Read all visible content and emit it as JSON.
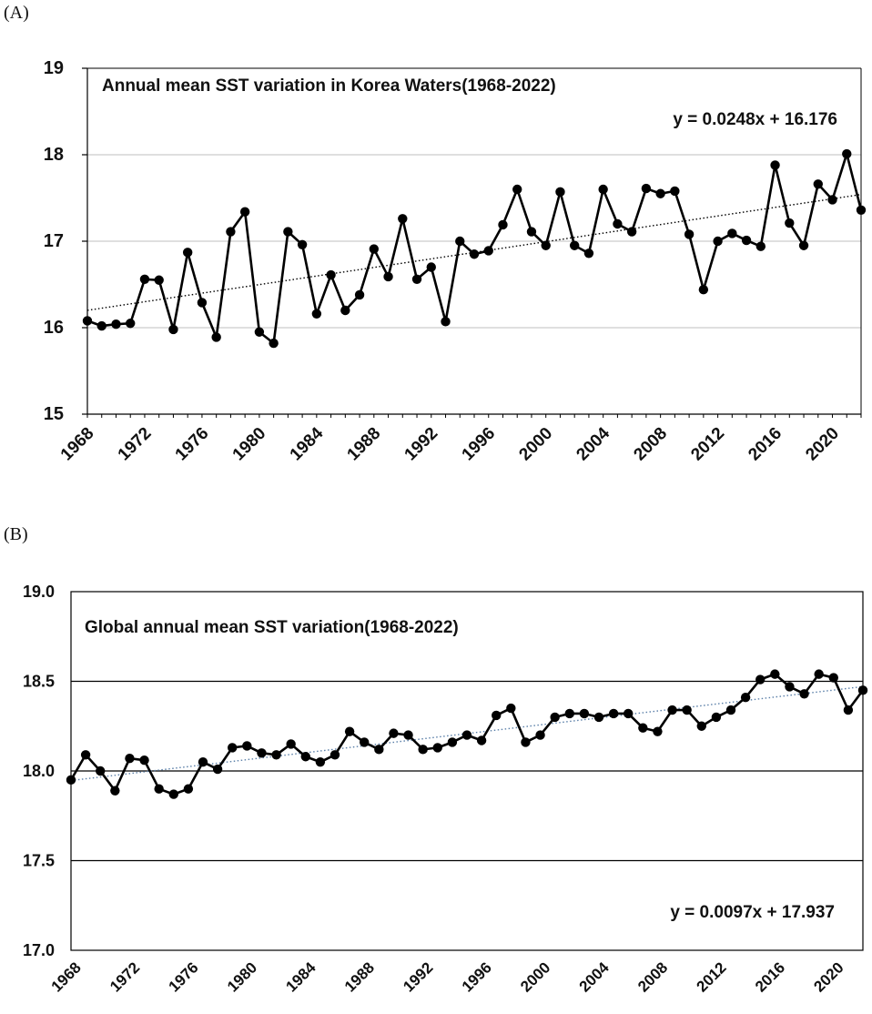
{
  "chart_data": [
    {
      "panel_label": "(A)",
      "type": "line",
      "title": "Annual mean SST variation in Korea Waters(1968-2022)",
      "equation": "y = 0.0248x + 16.176",
      "xlabel": "",
      "ylabel": "",
      "ylim": [
        15,
        19
      ],
      "yticks": [
        15,
        16,
        17,
        18,
        19
      ],
      "ytick_labels": [
        "15",
        "16",
        "17",
        "18",
        "19"
      ],
      "xtick_labels": [
        "1968",
        "1972",
        "1976",
        "1980",
        "1984",
        "1988",
        "1992",
        "1996",
        "2000",
        "2004",
        "2008",
        "2012",
        "2016",
        "2020"
      ],
      "grid": true,
      "trend": {
        "slope": 0.0248,
        "intercept": 16.176,
        "style": "dotted"
      },
      "series": [
        {
          "name": "Annual mean SST",
          "x": [
            1968,
            1969,
            1970,
            1971,
            1972,
            1973,
            1974,
            1975,
            1976,
            1977,
            1978,
            1979,
            1980,
            1981,
            1982,
            1983,
            1984,
            1985,
            1986,
            1987,
            1988,
            1989,
            1990,
            1991,
            1992,
            1993,
            1994,
            1995,
            1996,
            1997,
            1998,
            1999,
            2000,
            2001,
            2002,
            2003,
            2004,
            2005,
            2006,
            2007,
            2008,
            2009,
            2010,
            2011,
            2012,
            2013,
            2014,
            2015,
            2016,
            2017,
            2018,
            2019,
            2020,
            2021,
            2022
          ],
          "values": [
            16.08,
            16.02,
            16.04,
            16.05,
            16.56,
            16.55,
            15.98,
            16.87,
            16.29,
            15.89,
            17.11,
            17.34,
            15.95,
            15.82,
            17.11,
            16.96,
            16.16,
            16.61,
            16.2,
            16.38,
            16.91,
            16.59,
            17.26,
            16.56,
            16.7,
            16.07,
            17.0,
            16.85,
            16.89,
            17.19,
            17.6,
            17.11,
            16.95,
            17.57,
            16.95,
            16.86,
            17.6,
            17.2,
            17.11,
            17.61,
            17.55,
            17.58,
            17.08,
            16.44,
            17.0,
            17.09,
            17.01,
            16.94,
            17.88,
            17.21,
            16.95,
            17.66,
            17.48,
            18.01,
            17.36
          ]
        }
      ]
    },
    {
      "panel_label": "(B)",
      "type": "line",
      "title": "Global annual mean SST variation(1968-2022)",
      "equation": "y = 0.0097x + 17.937",
      "xlabel": "",
      "ylabel": "",
      "ylim": [
        17.0,
        19.0
      ],
      "yticks": [
        17.0,
        17.5,
        18.0,
        18.5,
        19.0
      ],
      "ytick_labels": [
        "17.0",
        "17.5",
        "18.0",
        "18.5",
        "19.0"
      ],
      "xtick_labels": [
        "1968",
        "1972",
        "1976",
        "1980",
        "1984",
        "1988",
        "1992",
        "1996",
        "2000",
        "2004",
        "2008",
        "2012",
        "2016",
        "2020"
      ],
      "grid": true,
      "trend": {
        "slope": 0.0097,
        "intercept": 17.937,
        "style": "dotted"
      },
      "series": [
        {
          "name": "Global annual mean SST",
          "x": [
            1968,
            1969,
            1970,
            1971,
            1972,
            1973,
            1974,
            1975,
            1976,
            1977,
            1978,
            1979,
            1980,
            1981,
            1982,
            1983,
            1984,
            1985,
            1986,
            1987,
            1988,
            1989,
            1990,
            1991,
            1992,
            1993,
            1994,
            1995,
            1996,
            1997,
            1998,
            1999,
            2000,
            2001,
            2002,
            2003,
            2004,
            2005,
            2006,
            2007,
            2008,
            2009,
            2010,
            2011,
            2012,
            2013,
            2014,
            2015,
            2016,
            2017,
            2018,
            2019,
            2020,
            2021,
            2022
          ],
          "values": [
            17.95,
            18.09,
            18.0,
            17.89,
            18.07,
            18.06,
            17.9,
            17.87,
            17.9,
            18.05,
            18.01,
            18.13,
            18.14,
            18.1,
            18.09,
            18.15,
            18.08,
            18.05,
            18.09,
            18.22,
            18.16,
            18.12,
            18.21,
            18.2,
            18.12,
            18.13,
            18.16,
            18.2,
            18.17,
            18.31,
            18.35,
            18.16,
            18.2,
            18.3,
            18.32,
            18.32,
            18.3,
            18.32,
            18.32,
            18.24,
            18.22,
            18.34,
            18.34,
            18.25,
            18.3,
            18.34,
            18.41,
            18.51,
            18.54,
            18.47,
            18.43,
            18.54,
            18.52,
            18.34,
            18.45
          ]
        }
      ]
    }
  ],
  "colors": {
    "line": "#000000",
    "marker": "#000000",
    "grid": "#bfbfbf",
    "trend_a": "#000000",
    "trend_b": "#5a7fa8"
  }
}
